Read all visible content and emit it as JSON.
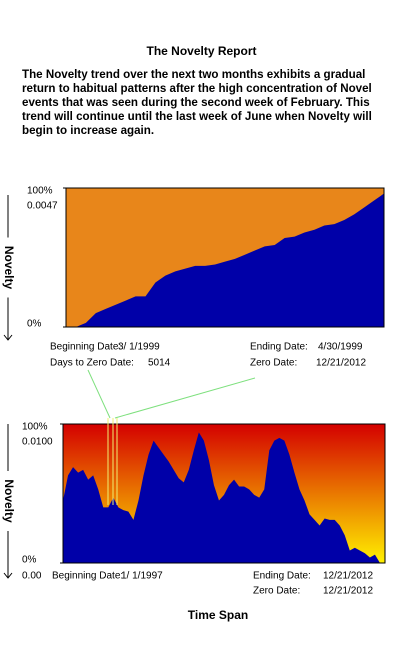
{
  "title": "The Novelty Report",
  "summary": "The Novelty trend over the next two months exhibits a gradual\nreturn to habitual patterns after the high concentration of Novel\nevents  that was seen during the second week of February.  This\ntrend will continue until the last week of June when Novelty will\nbegin to increase again.",
  "chart_data": [
    {
      "type": "area",
      "ylabel": "Novelty",
      "ylim": [
        0,
        100
      ],
      "yticks": [
        {
          "value": 0,
          "label": "0%"
        },
        {
          "value": 100,
          "label": "100%"
        }
      ],
      "annotation": "0.0047",
      "color": "#0000a8",
      "background": [
        "#e8861a"
      ],
      "values": [
        0,
        0,
        3,
        10,
        13,
        16,
        19,
        22,
        22,
        32,
        37,
        40,
        42,
        44,
        44,
        45,
        47,
        49,
        52,
        55,
        58,
        59,
        64,
        65,
        68,
        70,
        73,
        74,
        77,
        81,
        86,
        91,
        96
      ],
      "info": [
        {
          "label": "Beginning Date:",
          "value": "3/ 1/1999"
        },
        {
          "label": "Ending Date:",
          "value": "4/30/1999"
        },
        {
          "label": "Days to Zero Date:",
          "value": "5014"
        },
        {
          "label": "Zero Date:",
          "value": "12/21/2012"
        }
      ]
    },
    {
      "type": "area",
      "ylabel": "Novelty",
      "ylim": [
        0,
        100
      ],
      "yticks": [
        {
          "value": 0,
          "label": "0%"
        },
        {
          "value": 100,
          "label": "100%"
        }
      ],
      "annotation": "0.0100",
      "x_start_label": "0.00",
      "xlabel": "Time Span",
      "color": "#0000a8",
      "background": [
        "#d40000",
        "#fff000"
      ],
      "values": [
        45,
        63,
        69,
        65,
        67,
        60,
        63,
        53,
        40,
        40,
        47,
        40,
        38,
        37,
        31,
        45,
        63,
        78,
        88,
        83,
        78,
        73,
        67,
        61,
        58,
        67,
        81,
        94,
        88,
        74,
        56,
        45,
        49,
        56,
        60,
        55,
        55,
        53,
        49,
        47,
        53,
        81,
        88,
        90,
        88,
        78,
        65,
        53,
        45,
        35,
        31,
        27,
        32,
        31,
        31,
        27,
        20,
        9,
        11,
        9,
        7,
        4,
        6,
        0,
        0
      ],
      "info": [
        {
          "label": "Beginning Date:",
          "value": "1/ 1/1997"
        },
        {
          "label": "Ending Date:",
          "value": "12/21/2012"
        },
        {
          "label": "Zero Date:",
          "value": "12/21/2012"
        }
      ]
    }
  ]
}
